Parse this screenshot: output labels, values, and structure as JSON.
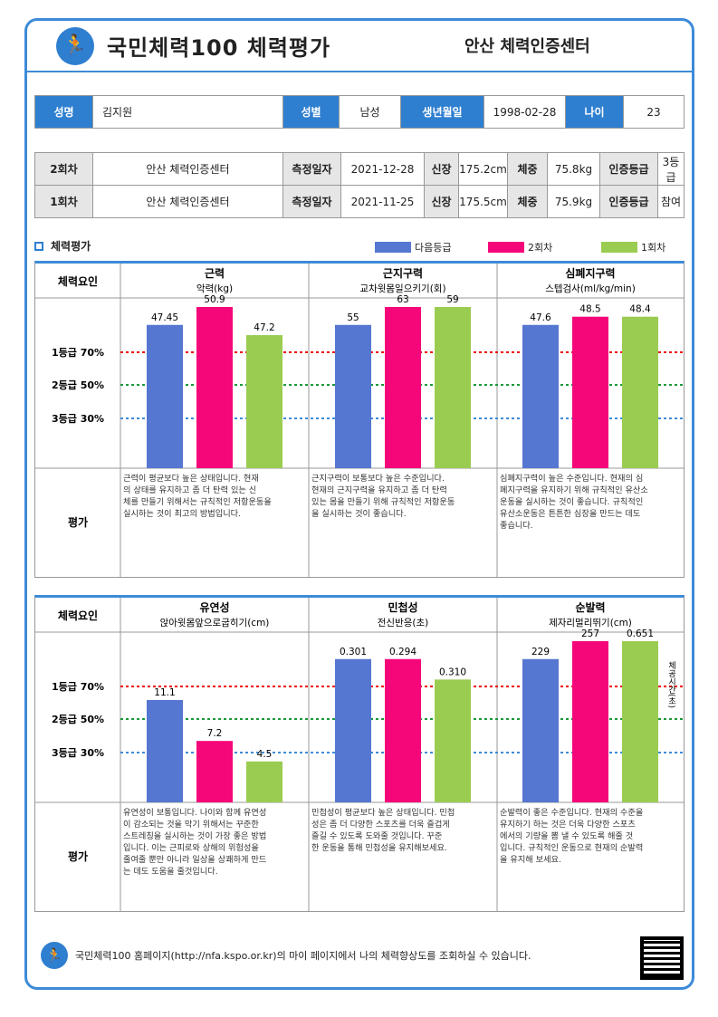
{
  "header": {
    "title": "국민체력100  체력평가",
    "center": "안산 체력인증센터"
  },
  "profile": {
    "name_label": "성명",
    "name": "김지원",
    "sex_label": "성별",
    "sex": "남성",
    "birth_label": "생년월일",
    "birth": "1998-02-28",
    "age_label": "나이",
    "age": "23"
  },
  "sessions": [
    {
      "round": "2회차",
      "center": "안산 체력인증센터",
      "date_label": "측정일자",
      "date": "2021-12-28",
      "height_label": "신장",
      "height": "175.2cm",
      "weight_label": "체중",
      "weight": "75.8kg",
      "grade_label": "인증등급",
      "grade": "3등급"
    },
    {
      "round": "1회차",
      "center": "안산 체력인증센터",
      "date_label": "측정일자",
      "date": "2021-11-25",
      "height_label": "신장",
      "height": "175.5cm",
      "weight_label": "체중",
      "weight": "75.9kg",
      "grade_label": "인증등급",
      "grade": "참여"
    }
  ],
  "section_title": "체력평가",
  "legend": [
    {
      "name": "다음등급",
      "color": "#5577d1"
    },
    {
      "name": "2회차",
      "color": "#f5077a"
    },
    {
      "name": "1회차",
      "color": "#9bcc52"
    }
  ],
  "factor_label": "체력요인",
  "eval_label": "평가",
  "grade_lines": [
    "1등급 70%",
    "2등급 50%",
    "3등급 30%"
  ],
  "footer": "국민체력100 홈페이지(http://nfa.kspo.or.kr)의 마이 페이지에서 나의 체력향상도를 조회하실 수 있습니다.",
  "chart_data": [
    {
      "type": "bar",
      "title": "근력",
      "subtitle": "악력(kg)",
      "categories": [
        "다음등급",
        "2회차",
        "1회차"
      ],
      "labels": [
        "47.45",
        "50.9",
        "47.2"
      ],
      "values": [
        70,
        81,
        65
      ],
      "eval": "근력이 평균보다 높은  상태입니다. 현재의 상태를 유지하고 좀 더 탄력 있는 신체를 만들기 위해서는 규칙적인 저항운동을 실시하는 것이 최고의 방법입니다."
    },
    {
      "type": "bar",
      "title": "근지구력",
      "subtitle": "교차윗몸일으키기(회)",
      "categories": [
        "다음등급",
        "2회차",
        "1회차"
      ],
      "labels": [
        "55",
        "63",
        "59"
      ],
      "values": [
        70,
        85,
        80
      ],
      "eval": "근지구력이 보통보다 높은  수준입니다. 현재의 근지구력을 유지하고 좀 더 탄력 있는 몸을 만들기 위해 규칙적인 저항운동을 실시하는 것이 좋습니다."
    },
    {
      "type": "bar",
      "title": "심폐지구력",
      "subtitle": "스텝검사(ml/kg/min)",
      "categories": [
        "다음등급",
        "2회차",
        "1회차"
      ],
      "labels": [
        "47.6",
        "48.5",
        "48.4"
      ],
      "values": [
        70,
        74,
        74
      ],
      "eval": "심폐지구력이 높은 수준입니다. 현재의 심폐지구력을 유지하기 위해 규칙적인 유산소운동을 실시하는 것이 좋습니다. 규칙적인 유산소운동은 튼튼한 심장을 만드는 데도 좋습니다."
    },
    {
      "type": "bar",
      "title": "유연성",
      "subtitle": "앉아윗몸앞으로굽히기(cm)",
      "categories": [
        "다음등급",
        "2회차",
        "1회차"
      ],
      "labels": [
        "11.1",
        "7.2",
        "4.5"
      ],
      "values": [
        50,
        30,
        20
      ],
      "eval": "유연성이 보통입니다. 나이와 함께 유연성이 감소되는 것을 막기 위해서는 꾸준한 스트레칭을 실시하는 것이 가장 좋은 방법입니다. 이는 근피로와 상해의 위험성을 줄여줄 뿐만 아니라 일상을 상쾌하게 만드는 데도 도움을 줄것입니다."
    },
    {
      "type": "bar",
      "title": "민첩성",
      "subtitle": "전신반응(초)",
      "categories": [
        "다음등급",
        "2회차",
        "1회차"
      ],
      "labels": [
        "0.301",
        "0.294",
        "0.310"
      ],
      "values": [
        70,
        70,
        60
      ],
      "eval": "민첩성이 평균보다 높은 상태입니다. 민첩성은 좀 더 다양한 스포츠를 더욱 즐겁게 즐길 수 있도록 도와줄 것입니다. 꾸준한 운동을 통해 민첩성을 유지해보세요."
    },
    {
      "type": "bar",
      "title": "순발력",
      "subtitle": "제자리멀리뛰기(cm)",
      "side": "체공시간(초)",
      "categories": [
        "다음등급",
        "2회차",
        "1회차"
      ],
      "labels": [
        "229",
        "257",
        "0.651"
      ],
      "values": [
        70,
        90,
        85
      ],
      "eval": "순발력이 좋은 수준입니다. 현재의 수준을 유지하기 하는 것은 더욱 다양한 스포츠에서의 기량을 뽐 낼 수 있도록 해줄 것입니다. 규칙적인 운동으로 현재의 순발력을 유지해 보세요."
    }
  ]
}
